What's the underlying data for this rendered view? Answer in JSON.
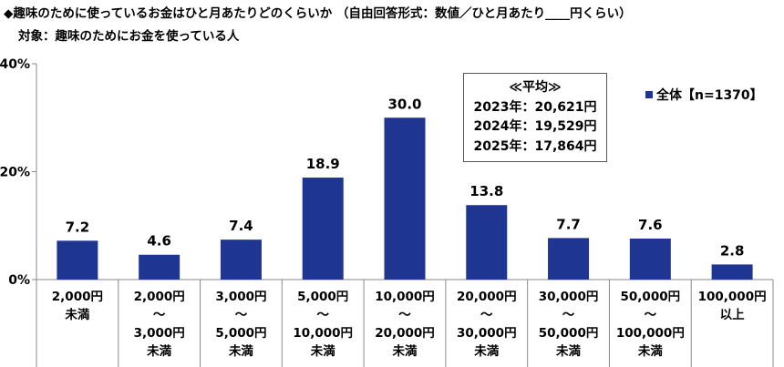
{
  "title": "◆趣味のために使っているお金はひと月あたりどのくらいか （自由回答形式：数値／ひと月あたり____円くらい）",
  "subtitle": "対象：趣味のためにお金を使っている人",
  "colors": {
    "bar": "#1f3592",
    "axis": "#8a8a8a",
    "grid": "#c8c8c8"
  },
  "average_box": {
    "header": "≪平均≫",
    "lines": [
      "2023年：20,621円",
      "2024年：19,529円",
      "2025年：17,864円"
    ]
  },
  "chart_data": {
    "type": "bar",
    "title": "",
    "xlabel": "",
    "ylabel": "",
    "ylim": [
      0,
      40
    ],
    "yticks": [
      0,
      20,
      40
    ],
    "ytick_labels": [
      "0%",
      "20%",
      "40%"
    ],
    "grid": false,
    "legend": "top-right",
    "categories": [
      [
        "2,000円",
        "未満"
      ],
      [
        "2,000円",
        "～",
        "3,000円",
        "未満"
      ],
      [
        "3,000円",
        "～",
        "5,000円",
        "未満"
      ],
      [
        "5,000円",
        "～",
        "10,000円",
        "未満"
      ],
      [
        "10,000円",
        "～",
        "20,000円",
        "未満"
      ],
      [
        "20,000円",
        "～",
        "30,000円",
        "未満"
      ],
      [
        "30,000円",
        "～",
        "50,000円",
        "未満"
      ],
      [
        "50,000円",
        "～",
        "100,000円",
        "未満"
      ],
      [
        "100,000円",
        "以上"
      ]
    ],
    "series": [
      {
        "name": "全体【n=1370】",
        "values": [
          7.2,
          4.6,
          7.4,
          18.9,
          30.0,
          13.8,
          7.7,
          7.6,
          2.8
        ]
      }
    ]
  }
}
